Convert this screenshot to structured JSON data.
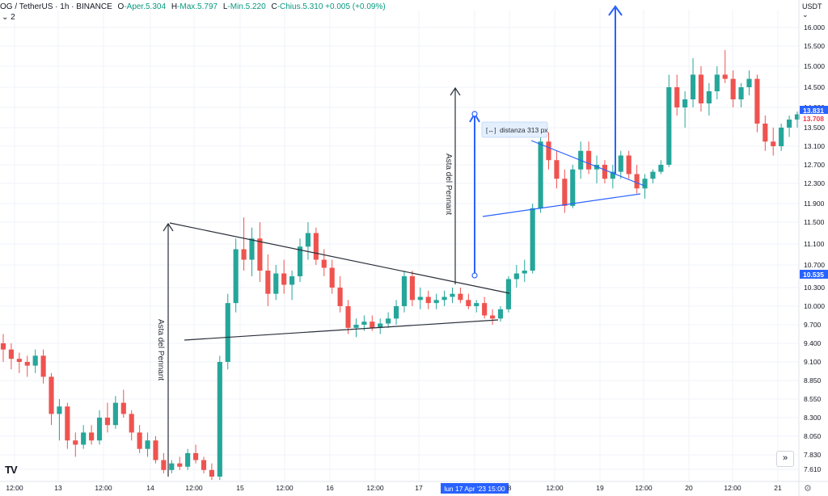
{
  "header": {
    "symbol": "OG / TetherUS · 1h · BINANCE",
    "open_label": "O",
    "open_value": "-Aper.5.304",
    "high_label": "H",
    "high_value": "-Max.5.797",
    "low_label": "L",
    "low_value": "-Min.5.220",
    "close_label": "C",
    "close_value": "-Chius.5.310 +0.005 (+0.09%)",
    "badge": "2"
  },
  "currency": "USDT",
  "controls": {
    "goto_realtime_icon": "double-chevron-right-icon",
    "goto_realtime_glyph": "»",
    "settings_icon": "gear-icon",
    "settings_glyph": "⚙"
  },
  "logo": {
    "text": "TV"
  },
  "chart_data": {
    "type": "candlestick",
    "y_axis": {
      "ticks": [
        "16.000",
        "15.500",
        "15.000",
        "14.500",
        "14.000",
        "13.500",
        "13.100",
        "12.700",
        "12.300",
        "11.900",
        "11.500",
        "11.100",
        "10.700",
        "10.300",
        "10.000",
        "9.700",
        "9.400",
        "9.100",
        "8.850",
        "8.550",
        "8.300",
        "8.050",
        "7.830",
        "7.610"
      ],
      "price_labels": [
        {
          "value": "13.831",
          "color": "#2962ff"
        },
        {
          "value": "13.708",
          "color": "#f23645"
        },
        {
          "value": "10.535",
          "color": "#2962ff"
        }
      ]
    },
    "x_axis": {
      "ticks": [
        "12:00",
        "13",
        "12:00",
        "14",
        "12:00",
        "15",
        "12:00",
        "16",
        "12:00",
        "17",
        "lun 17 Apr '23  15:00",
        "8",
        "12:00",
        "19",
        "12:00",
        "20",
        "12:00",
        "21"
      ]
    },
    "colors": {
      "up": "#26a69a",
      "down": "#ef5350",
      "line_dark": "#2a2e39",
      "line_blue": "#2962ff"
    },
    "annotations": [
      {
        "text": "Asta del Pennant"
      },
      {
        "text": "Asta del Pennant"
      },
      {
        "text": "distanza 313 px"
      }
    ],
    "candles": [
      [
        9.4,
        9.55,
        9.1,
        9.3
      ],
      [
        9.3,
        9.4,
        9.0,
        9.15
      ],
      [
        9.15,
        9.25,
        8.95,
        9.1
      ],
      [
        9.1,
        9.2,
        8.9,
        9.05
      ],
      [
        9.05,
        9.3,
        8.95,
        9.2
      ],
      [
        9.2,
        9.3,
        8.8,
        8.9
      ],
      [
        8.9,
        8.95,
        8.2,
        8.35
      ],
      [
        8.35,
        8.55,
        8.0,
        8.45
      ],
      [
        8.45,
        8.5,
        7.9,
        8.0
      ],
      [
        8.0,
        8.1,
        7.8,
        7.95
      ],
      [
        7.95,
        8.2,
        7.9,
        8.1
      ],
      [
        8.1,
        8.2,
        7.95,
        8.0
      ],
      [
        8.0,
        8.4,
        7.95,
        8.3
      ],
      [
        8.3,
        8.5,
        8.1,
        8.2
      ],
      [
        8.2,
        8.6,
        8.15,
        8.5
      ],
      [
        8.5,
        8.7,
        8.3,
        8.35
      ],
      [
        8.35,
        8.4,
        8.0,
        8.1
      ],
      [
        8.1,
        8.2,
        7.85,
        7.9
      ],
      [
        7.9,
        8.1,
        7.8,
        8.0
      ],
      [
        8.0,
        8.05,
        7.7,
        7.75
      ],
      [
        7.75,
        7.85,
        7.55,
        7.6
      ],
      [
        7.6,
        7.75,
        7.55,
        7.7
      ],
      [
        7.7,
        7.8,
        7.6,
        7.65
      ],
      [
        7.65,
        7.9,
        7.6,
        7.85
      ],
      [
        7.85,
        7.95,
        7.7,
        7.75
      ],
      [
        7.75,
        7.8,
        7.55,
        7.6
      ],
      [
        7.6,
        7.7,
        7.45,
        7.5
      ],
      [
        7.5,
        9.2,
        7.45,
        9.1
      ],
      [
        9.1,
        10.2,
        9.0,
        10.05
      ],
      [
        10.05,
        11.2,
        9.9,
        11.0
      ],
      [
        11.0,
        11.6,
        10.6,
        10.8
      ],
      [
        10.8,
        11.4,
        10.5,
        11.2
      ],
      [
        11.2,
        11.5,
        10.4,
        10.6
      ],
      [
        10.6,
        10.9,
        10.0,
        10.2
      ],
      [
        10.2,
        10.7,
        10.1,
        10.55
      ],
      [
        10.55,
        10.8,
        10.2,
        10.35
      ],
      [
        10.35,
        10.6,
        10.1,
        10.5
      ],
      [
        10.5,
        11.2,
        10.4,
        11.05
      ],
      [
        11.05,
        11.5,
        10.8,
        11.3
      ],
      [
        11.3,
        11.4,
        10.7,
        10.8
      ],
      [
        10.8,
        11.0,
        10.5,
        10.65
      ],
      [
        10.65,
        10.8,
        10.2,
        10.3
      ],
      [
        10.3,
        10.5,
        9.9,
        10.0
      ],
      [
        10.0,
        10.1,
        9.55,
        9.65
      ],
      [
        9.65,
        9.8,
        9.5,
        9.7
      ],
      [
        9.7,
        9.85,
        9.6,
        9.75
      ],
      [
        9.75,
        9.85,
        9.6,
        9.65
      ],
      [
        9.65,
        9.8,
        9.55,
        9.72
      ],
      [
        9.72,
        9.9,
        9.65,
        9.8
      ],
      [
        9.8,
        10.1,
        9.7,
        10.0
      ],
      [
        10.0,
        10.6,
        9.9,
        10.5
      ],
      [
        10.5,
        10.6,
        10.0,
        10.1
      ],
      [
        10.1,
        10.3,
        9.95,
        10.15
      ],
      [
        10.15,
        10.25,
        9.95,
        10.05
      ],
      [
        10.05,
        10.2,
        9.95,
        10.1
      ],
      [
        10.1,
        10.25,
        10.0,
        10.15
      ],
      [
        10.15,
        10.3,
        10.05,
        10.2
      ],
      [
        10.2,
        10.3,
        10.05,
        10.1
      ],
      [
        10.1,
        10.2,
        9.95,
        10.0
      ],
      [
        10.0,
        10.1,
        9.9,
        10.05
      ],
      [
        10.05,
        10.15,
        9.8,
        9.85
      ],
      [
        9.85,
        9.95,
        9.7,
        9.8
      ],
      [
        9.8,
        10.0,
        9.75,
        9.95
      ],
      [
        9.95,
        10.5,
        9.9,
        10.45
      ],
      [
        10.45,
        10.7,
        10.3,
        10.55
      ],
      [
        10.55,
        10.8,
        10.4,
        10.6
      ],
      [
        10.6,
        11.9,
        10.55,
        11.8
      ],
      [
        11.8,
        13.5,
        11.7,
        13.2
      ],
      [
        13.2,
        13.4,
        12.6,
        12.8
      ],
      [
        12.8,
        13.0,
        12.2,
        12.4
      ],
      [
        12.4,
        12.6,
        11.7,
        11.85
      ],
      [
        11.85,
        12.7,
        11.8,
        12.6
      ],
      [
        12.6,
        13.2,
        12.4,
        13.0
      ],
      [
        13.0,
        13.2,
        12.5,
        12.6
      ],
      [
        12.6,
        12.9,
        12.3,
        12.7
      ],
      [
        12.7,
        12.8,
        12.3,
        12.4
      ],
      [
        12.4,
        12.7,
        12.2,
        12.55
      ],
      [
        12.55,
        13.0,
        12.4,
        12.9
      ],
      [
        12.9,
        13.0,
        12.4,
        12.5
      ],
      [
        12.5,
        12.7,
        12.1,
        12.2
      ],
      [
        12.2,
        12.5,
        12.0,
        12.4
      ],
      [
        12.4,
        12.6,
        12.3,
        12.55
      ],
      [
        12.55,
        12.8,
        12.5,
        12.7
      ],
      [
        12.7,
        14.8,
        12.65,
        14.5
      ],
      [
        14.5,
        14.8,
        13.8,
        14.0
      ],
      [
        14.0,
        14.4,
        13.5,
        14.2
      ],
      [
        14.2,
        15.2,
        14.0,
        14.8
      ],
      [
        14.8,
        15.0,
        13.9,
        14.1
      ],
      [
        14.1,
        14.6,
        13.8,
        14.4
      ],
      [
        14.4,
        15.0,
        14.2,
        14.8
      ],
      [
        14.8,
        15.4,
        14.6,
        14.7
      ],
      [
        14.7,
        14.9,
        14.0,
        14.2
      ],
      [
        14.2,
        14.6,
        14.0,
        14.5
      ],
      [
        14.5,
        14.9,
        14.3,
        14.7
      ],
      [
        14.7,
        14.8,
        13.4,
        13.6
      ],
      [
        13.6,
        13.8,
        13.0,
        13.2
      ],
      [
        13.2,
        13.5,
        12.9,
        13.1
      ],
      [
        13.1,
        13.6,
        13.0,
        13.5
      ],
      [
        13.5,
        13.8,
        13.3,
        13.7
      ],
      [
        13.7,
        13.9,
        13.5,
        13.83
      ]
    ]
  }
}
